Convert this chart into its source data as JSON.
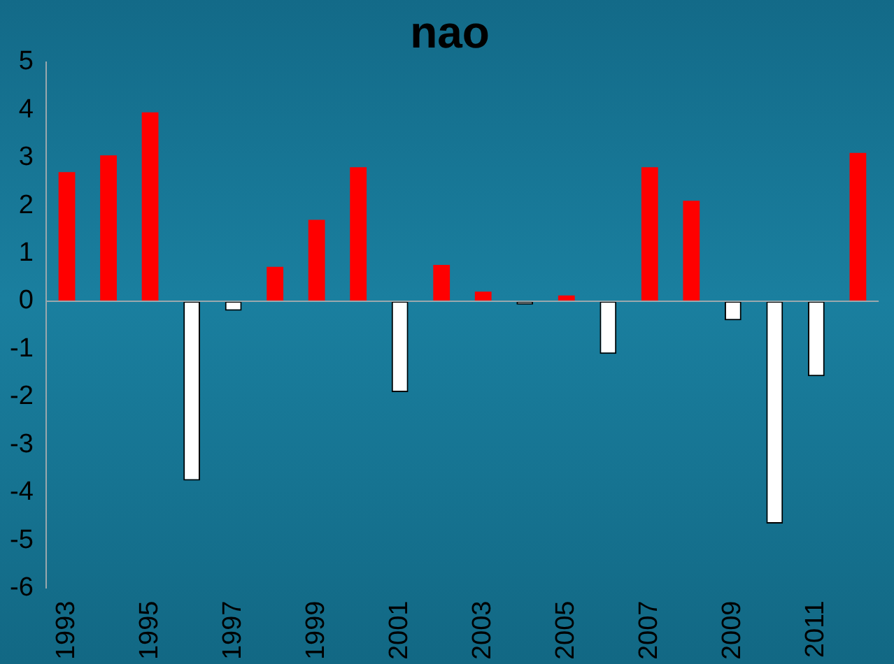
{
  "chart_data": {
    "type": "bar",
    "title": "nao",
    "categories": [
      "1993",
      null,
      "1995",
      null,
      "1997",
      null,
      "1999",
      null,
      "2001",
      null,
      "2003",
      null,
      "2005",
      null,
      "2007",
      null,
      "2009",
      null,
      "2011",
      null
    ],
    "values": [
      2.7,
      3.05,
      3.95,
      -3.75,
      -0.2,
      0.72,
      1.7,
      2.8,
      -1.9,
      0.76,
      0.2,
      -0.07,
      0.12,
      -1.1,
      2.8,
      2.1,
      -0.4,
      -4.65,
      -1.57,
      3.1
    ],
    "colors": [
      "#ff0000",
      "#ff0000",
      "#ff0000",
      "#ffffff",
      "#ffffff",
      "#ff0000",
      "#ff0000",
      "#ff0000",
      "#ffffff",
      "#ff0000",
      "#ff0000",
      "#ffffff",
      "#ff0000",
      "#ffffff",
      "#ff0000",
      "#ff0000",
      "#ffffff",
      "#ffffff",
      "#ffffff",
      "#ff0000"
    ],
    "ylim": [
      -6,
      5
    ],
    "yticks": [
      -6,
      -5,
      -4,
      -3,
      -2,
      -1,
      0,
      1,
      2,
      3,
      4,
      5
    ],
    "ref_lines": [
      {
        "axis": "y",
        "value": 0,
        "color": "#9aa8ad"
      }
    ],
    "grid": false,
    "legend": false
  }
}
